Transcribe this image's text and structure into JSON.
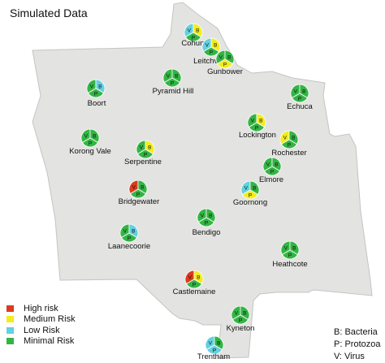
{
  "title": "Simulated Data",
  "colors": {
    "high": "#dd3a1f",
    "medium": "#f2ec1e",
    "low": "#62d1e0",
    "minimal": "#33b544",
    "region_fill": "#e3e3e1",
    "region_stroke": "#c4c4c2"
  },
  "legend": [
    {
      "label": "High risk",
      "level": "high"
    },
    {
      "label": "Medium Risk",
      "level": "medium"
    },
    {
      "label": "Low Risk",
      "level": "low"
    },
    {
      "label": "Minimal Risk",
      "level": "minimal"
    }
  ],
  "key": {
    "bacteria": "B: Bacteria",
    "protozoa": "P: Protozoa",
    "virus": "V: Virus"
  },
  "pie_letters": {
    "virus": "V",
    "bacteria": "B",
    "protozoa": "P"
  },
  "towns": [
    {
      "name": "Cohuna",
      "virus": "low",
      "bacteria": "medium",
      "protozoa": "minimal"
    },
    {
      "name": "Leitchville",
      "virus": "low",
      "bacteria": "medium",
      "protozoa": "minimal"
    },
    {
      "name": "Gunbower",
      "virus": "minimal",
      "bacteria": "minimal",
      "protozoa": "medium"
    },
    {
      "name": "Pyramid Hill",
      "virus": "minimal",
      "bacteria": "minimal",
      "protozoa": "minimal"
    },
    {
      "name": "Boort",
      "virus": "minimal",
      "bacteria": "low",
      "protozoa": "minimal"
    },
    {
      "name": "Echuca",
      "virus": "minimal",
      "bacteria": "minimal",
      "protozoa": "minimal"
    },
    {
      "name": "Lockington",
      "virus": "minimal",
      "bacteria": "medium",
      "protozoa": "minimal"
    },
    {
      "name": "Korong Vale",
      "virus": "minimal",
      "bacteria": "minimal",
      "protozoa": "minimal"
    },
    {
      "name": "Rochester",
      "virus": "medium",
      "bacteria": "minimal",
      "protozoa": "minimal"
    },
    {
      "name": "Serpentine",
      "virus": "minimal",
      "bacteria": "medium",
      "protozoa": "minimal"
    },
    {
      "name": "Elmore",
      "virus": "minimal",
      "bacteria": "minimal",
      "protozoa": "minimal"
    },
    {
      "name": "Bridgewater",
      "virus": "high",
      "bacteria": "minimal",
      "protozoa": "minimal"
    },
    {
      "name": "Goornong",
      "virus": "low",
      "bacteria": "minimal",
      "protozoa": "medium"
    },
    {
      "name": "Bendigo",
      "virus": "minimal",
      "bacteria": "minimal",
      "protozoa": "minimal"
    },
    {
      "name": "Laanecoorie",
      "virus": "minimal",
      "bacteria": "low",
      "protozoa": "minimal"
    },
    {
      "name": "Heathcote",
      "virus": "minimal",
      "bacteria": "minimal",
      "protozoa": "minimal"
    },
    {
      "name": "Castlemaine",
      "virus": "high",
      "bacteria": "medium",
      "protozoa": "minimal"
    },
    {
      "name": "Kyneton",
      "virus": "minimal",
      "bacteria": "minimal",
      "protozoa": "minimal"
    },
    {
      "name": "Trentham",
      "virus": "low",
      "bacteria": "minimal",
      "protozoa": "low"
    }
  ]
}
